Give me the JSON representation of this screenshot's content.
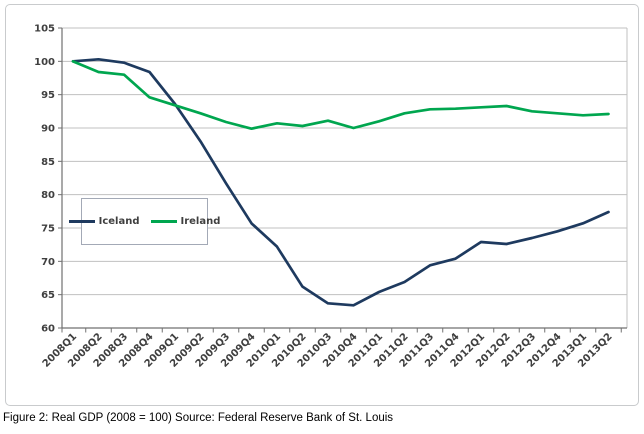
{
  "figure": {
    "caption": "Figure 2: Real GDP (2008 = 100) Source: Federal Reserve Bank of St. Louis"
  },
  "chart_data": {
    "type": "line",
    "title": "",
    "xlabel": "",
    "ylabel": "",
    "categories": [
      "2008Q1",
      "2008Q2",
      "2008Q3",
      "2008Q4",
      "2009Q1",
      "2009Q2",
      "2009Q3",
      "2009Q4",
      "2010Q1",
      "2010Q2",
      "2010Q3",
      "2010Q4",
      "2011Q1",
      "2011Q2",
      "2011Q3",
      "2011Q4",
      "2012Q1",
      "2012Q2",
      "2012Q3",
      "2012Q4",
      "2013Q1",
      "2013Q2"
    ],
    "series": [
      {
        "name": "Iceland",
        "color": "#1E3A5F",
        "values": [
          100,
          100.3,
          99.8,
          98.4,
          93.6,
          88.0,
          81.7,
          75.7,
          72.2,
          66.2,
          63.7,
          63.4,
          65.4,
          66.9,
          69.4,
          70.4,
          72.9,
          72.6,
          73.5,
          74.5,
          75.7,
          77.4
        ]
      },
      {
        "name": "Ireland",
        "color": "#00A64F",
        "values": [
          100,
          98.4,
          98.0,
          94.6,
          93.4,
          92.2,
          90.9,
          89.9,
          90.7,
          90.3,
          91.1,
          90.0,
          91.0,
          92.2,
          92.8,
          92.9,
          93.1,
          93.3,
          92.5,
          92.2,
          91.9,
          92.1
        ]
      }
    ],
    "ylim": [
      60,
      105
    ],
    "ytick_step": 5,
    "ytick_labels": [
      "60",
      "65",
      "70",
      "75",
      "80",
      "85",
      "90",
      "95",
      "100",
      "105"
    ],
    "grid": "horizontal",
    "legend_position": "inside-upper-left",
    "colors": {
      "grid_line": "#C0C0C0",
      "axis_line": "#707070",
      "tick_label": "#3F3F3F",
      "plot_right_border": "#C0C0C0"
    }
  }
}
